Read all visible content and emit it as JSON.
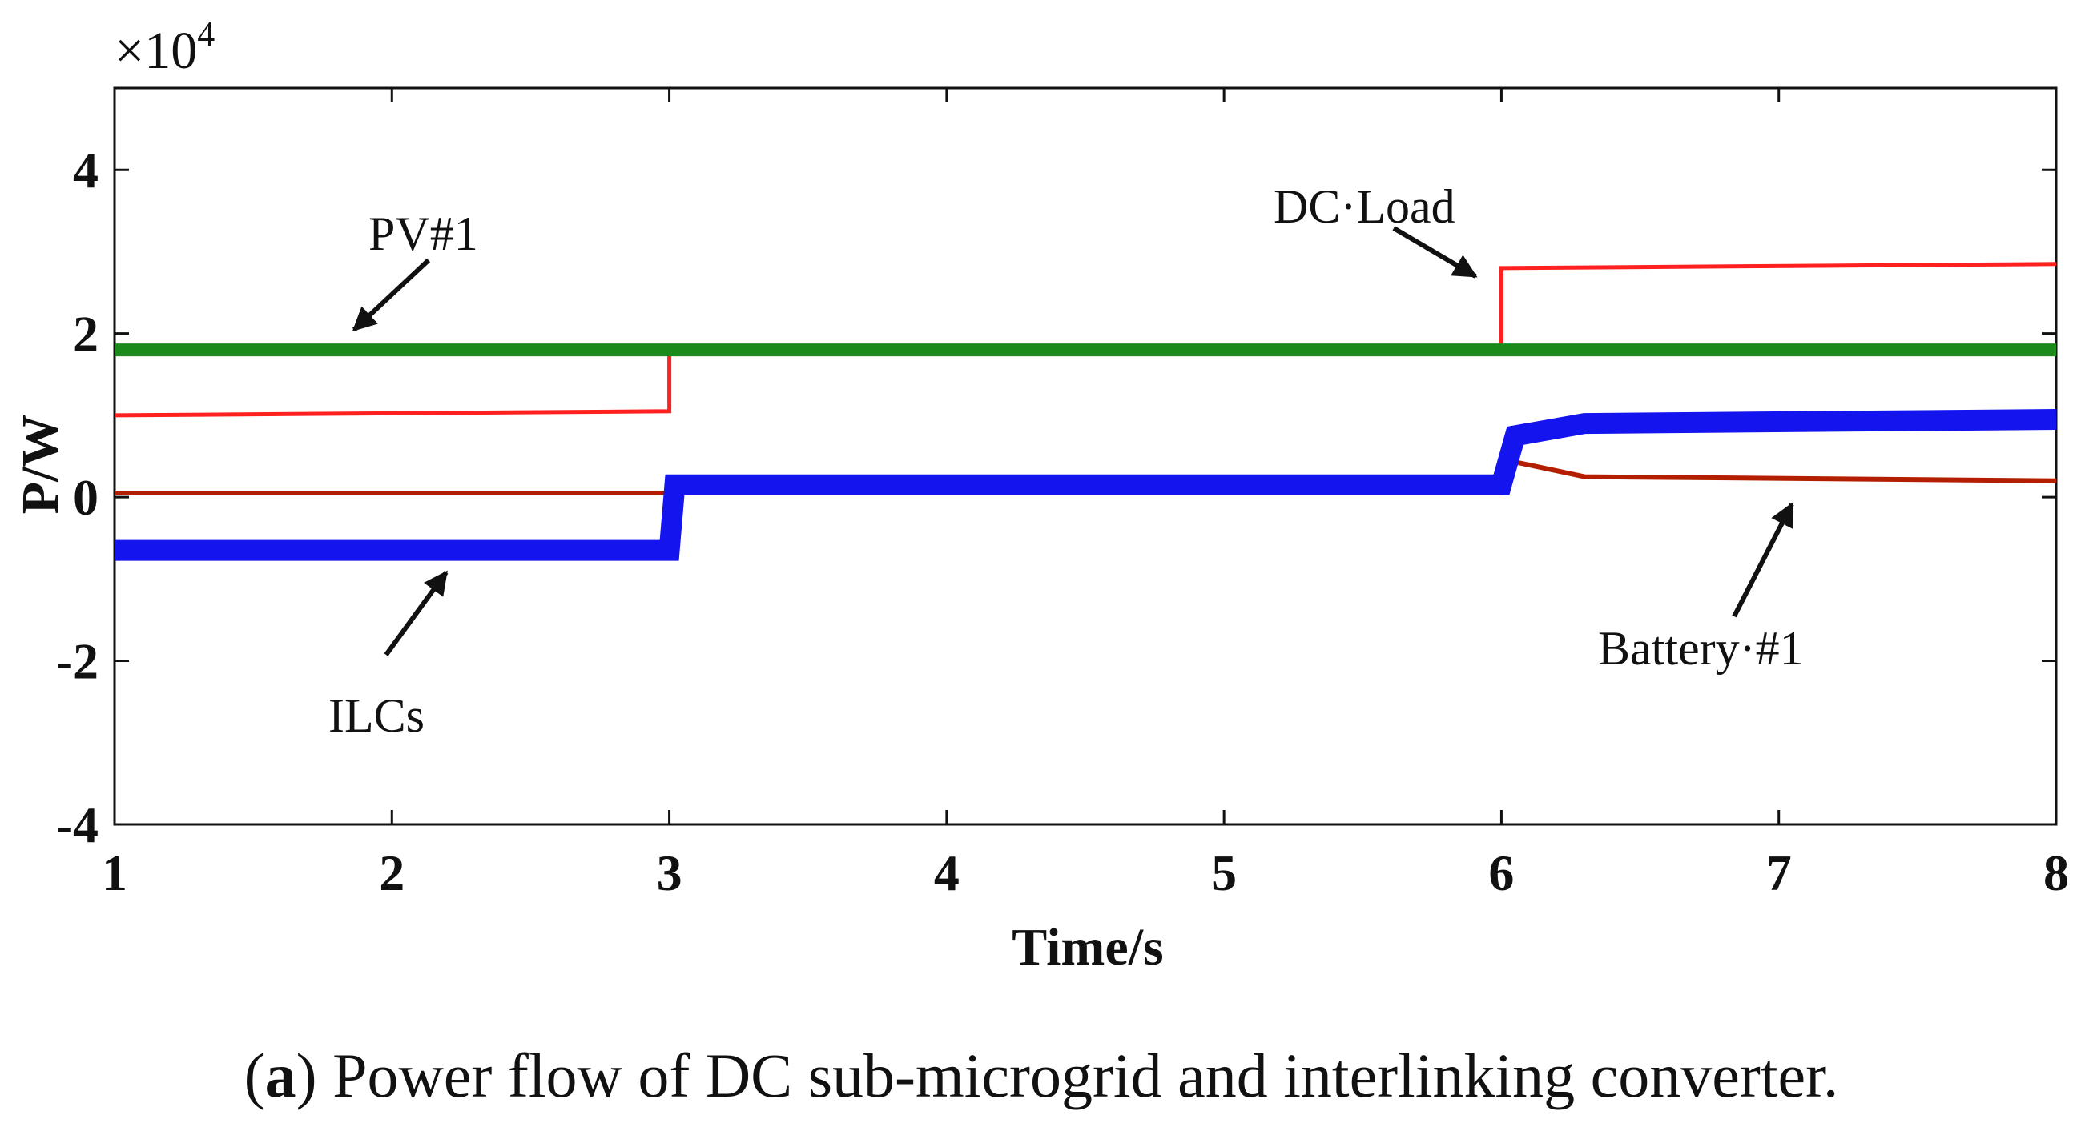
{
  "chart_data": {
    "type": "line",
    "title": "",
    "xlabel": "Time/s",
    "ylabel": "P/W",
    "y_multiplier": "×10",
    "y_multiplier_exp": "4",
    "xlim": [
      1,
      8
    ],
    "ylim": [
      -4,
      5
    ],
    "xticks": [
      1,
      2,
      3,
      4,
      5,
      6,
      7,
      8
    ],
    "yticks": [
      -4,
      -2,
      0,
      2,
      4
    ],
    "grid": false,
    "series": [
      {
        "name": "PV#1",
        "color": "#1a8a1a",
        "points": [
          [
            1,
            1.8
          ],
          [
            8,
            1.8
          ]
        ]
      },
      {
        "name": "DC·Load",
        "color": "#ff2020",
        "points": [
          [
            1,
            1.0
          ],
          [
            3,
            1.05
          ],
          [
            3,
            1.8
          ],
          [
            6,
            1.8
          ],
          [
            6,
            2.8
          ],
          [
            8,
            2.85
          ]
        ]
      },
      {
        "name": "ILCs",
        "color": "#1414ee",
        "points": [
          [
            1,
            -0.65
          ],
          [
            3,
            -0.65
          ],
          [
            3.02,
            0.15
          ],
          [
            6,
            0.15
          ],
          [
            6.05,
            0.75
          ],
          [
            6.3,
            0.9
          ],
          [
            8,
            0.95
          ]
        ]
      },
      {
        "name": "Battery·#1",
        "color": "#b41e00",
        "points": [
          [
            1,
            0.05
          ],
          [
            3,
            0.05
          ],
          [
            6,
            0.05
          ],
          [
            6.02,
            0.45
          ],
          [
            6.3,
            0.25
          ],
          [
            8,
            0.2
          ]
        ]
      }
    ],
    "annotations": [
      {
        "text": "PV#1",
        "series": "PV#1"
      },
      {
        "text": "DC·Load",
        "series": "DC·Load"
      },
      {
        "text": "ILCs",
        "series": "ILCs"
      },
      {
        "text": "Battery·#1",
        "series": "Battery·#1"
      }
    ]
  },
  "caption": {
    "label": "a",
    "text": ") Power flow of DC sub-microgrid and interlinking converter."
  }
}
